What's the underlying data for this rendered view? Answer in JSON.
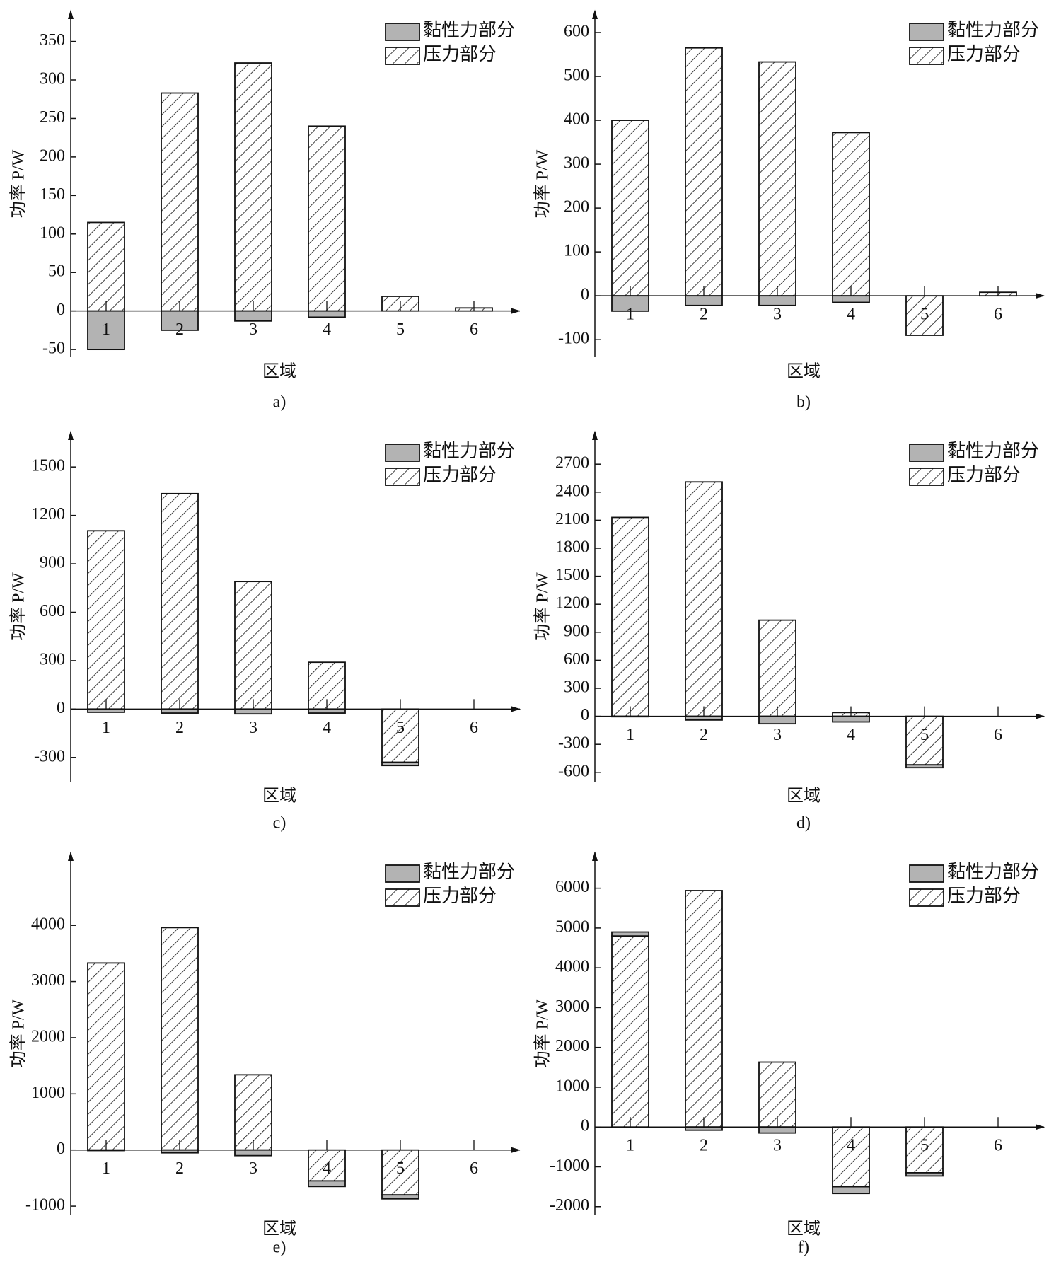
{
  "chart_data": [
    {
      "type": "bar",
      "caption": "a)",
      "xlabel": "区域",
      "ylabel": "功率 P/W",
      "categories": [
        "1",
        "2",
        "3",
        "4",
        "5",
        "6"
      ],
      "ylim": [
        -60,
        390
      ],
      "yticks": [
        -50,
        0,
        50,
        100,
        150,
        200,
        250,
        300,
        350
      ],
      "series": [
        {
          "name": "黏性力部分",
          "color": "#b3b3b3",
          "values": [
            -50,
            -25,
            -13,
            -8,
            0,
            0
          ]
        },
        {
          "name": "压力部分",
          "color": "#ffffff",
          "pattern": "hatch",
          "values": [
            115,
            283,
            322,
            240,
            19,
            4
          ]
        }
      ]
    },
    {
      "type": "bar",
      "caption": "b)",
      "xlabel": "区域",
      "ylabel": "功率 P/W",
      "categories": [
        "1",
        "2",
        "3",
        "4",
        "5",
        "6"
      ],
      "ylim": [
        -140,
        650
      ],
      "yticks": [
        -100,
        0,
        100,
        200,
        300,
        400,
        500,
        600
      ],
      "series": [
        {
          "name": "黏性力部分",
          "color": "#b3b3b3",
          "values": [
            -35,
            -22,
            -22,
            -15,
            0,
            0
          ]
        },
        {
          "name": "压力部分",
          "color": "#ffffff",
          "pattern": "hatch",
          "values": [
            400,
            565,
            533,
            372,
            -90,
            8
          ]
        }
      ]
    },
    {
      "type": "bar",
      "caption": "c)",
      "xlabel": "区域",
      "ylabel": "功率 P/W",
      "categories": [
        "1",
        "2",
        "3",
        "4",
        "5",
        "6"
      ],
      "ylim": [
        -450,
        1720
      ],
      "yticks": [
        -300,
        0,
        300,
        600,
        900,
        1200,
        1500
      ],
      "series": [
        {
          "name": "黏性力部分",
          "color": "#b3b3b3",
          "values": [
            -20,
            -25,
            -30,
            -25,
            -20,
            0
          ]
        },
        {
          "name": "压力部分",
          "color": "#ffffff",
          "pattern": "hatch",
          "values": [
            1105,
            1335,
            790,
            290,
            -330,
            0
          ]
        }
      ]
    },
    {
      "type": "bar",
      "caption": "d)",
      "xlabel": "区域",
      "ylabel": "功率 P/W",
      "categories": [
        "1",
        "2",
        "3",
        "4",
        "5",
        "6"
      ],
      "ylim": [
        -700,
        3050
      ],
      "yticks": [
        -600,
        -300,
        0,
        300,
        600,
        900,
        1200,
        1500,
        1800,
        2100,
        2400,
        2700
      ],
      "series": [
        {
          "name": "黏性力部分",
          "color": "#b3b3b3",
          "values": [
            -5,
            -40,
            -80,
            -60,
            -30,
            0
          ]
        },
        {
          "name": "压力部分",
          "color": "#ffffff",
          "pattern": "hatch",
          "values": [
            2130,
            2510,
            1030,
            40,
            -520,
            0
          ]
        }
      ]
    },
    {
      "type": "bar",
      "caption": "e)",
      "xlabel": "区域",
      "ylabel": "功率 P/W",
      "categories": [
        "1",
        "2",
        "3",
        "4",
        "5",
        "6"
      ],
      "ylim": [
        -1150,
        5300
      ],
      "yticks": [
        -1000,
        0,
        1000,
        2000,
        3000,
        4000
      ],
      "series": [
        {
          "name": "黏性力部分",
          "color": "#b3b3b3",
          "values": [
            -10,
            -50,
            -100,
            -100,
            -70,
            0
          ]
        },
        {
          "name": "压力部分",
          "color": "#ffffff",
          "pattern": "hatch",
          "values": [
            3330,
            3960,
            1340,
            -550,
            -800,
            0
          ]
        }
      ]
    },
    {
      "type": "bar",
      "caption": "f)",
      "xlabel": "区域",
      "ylabel": "功率 P/W",
      "categories": [
        "1",
        "2",
        "3",
        "4",
        "5",
        "6"
      ],
      "ylim": [
        -2200,
        6900
      ],
      "yticks": [
        -2000,
        -1000,
        0,
        1000,
        2000,
        3000,
        4000,
        5000,
        6000
      ],
      "series": [
        {
          "name": "黏性力部分",
          "color": "#b3b3b3",
          "values": [
            100,
            -80,
            -150,
            -170,
            -80,
            0
          ]
        },
        {
          "name": "压力部分",
          "color": "#ffffff",
          "pattern": "hatch",
          "values": [
            4800,
            5940,
            1630,
            -1500,
            -1150,
            0
          ]
        }
      ]
    }
  ]
}
